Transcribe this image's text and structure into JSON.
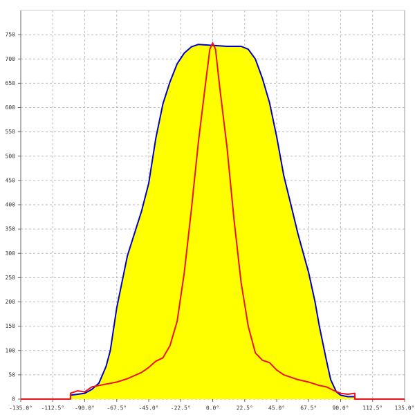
{
  "chart_data": {
    "type": "area-line",
    "xlim": [
      -135,
      135
    ],
    "ylim": [
      0,
      800
    ],
    "xticks": [
      {
        "value": -135,
        "label": "-135.0°"
      },
      {
        "value": -112.5,
        "label": "-112.5°"
      },
      {
        "value": -90,
        "label": "-90.0°"
      },
      {
        "value": -67.5,
        "label": "-67.5°"
      },
      {
        "value": -45,
        "label": "-45.0°"
      },
      {
        "value": -22.5,
        "label": "-22.5°"
      },
      {
        "value": 0,
        "label": "0.0°"
      },
      {
        "value": 22.5,
        "label": "22.5°"
      },
      {
        "value": 45,
        "label": "45.0°"
      },
      {
        "value": 67.5,
        "label": "67.5°"
      },
      {
        "value": 90,
        "label": "90.0°"
      },
      {
        "value": 112.5,
        "label": "112.5°"
      },
      {
        "value": 135,
        "label": "135.0°"
      }
    ],
    "yticks": [
      0,
      50,
      100,
      150,
      200,
      250,
      300,
      350,
      400,
      450,
      500,
      550,
      600,
      650,
      700,
      750
    ],
    "grid": true,
    "series": [
      {
        "color": "#0000cc",
        "fill": "#ffff00",
        "x": [
          -100,
          -100,
          -95,
          -90,
          -85,
          -80,
          -75,
          -72,
          -67.5,
          -60,
          -50,
          -45,
          -40,
          -35,
          -30,
          -25,
          -20,
          -15,
          -10,
          0,
          10,
          20,
          25,
          30,
          35,
          40,
          45,
          50,
          55,
          60,
          67.5,
          72,
          75,
          80,
          83,
          87,
          90,
          95,
          100,
          100
        ],
        "values": [
          0,
          8,
          10,
          12,
          20,
          33,
          67,
          100,
          188,
          295,
          387,
          444,
          537,
          608,
          653,
          690,
          712,
          725,
          730,
          728,
          726,
          726,
          720,
          700,
          660,
          610,
          540,
          460,
          400,
          340,
          260,
          200,
          150,
          80,
          40,
          15,
          8,
          5,
          5,
          0
        ]
      },
      {
        "color": "#ee1111",
        "x": [
          -135,
          -100,
          -100,
          -95,
          -90,
          -85,
          -80,
          -67.5,
          -60,
          -50,
          -45,
          -40,
          -35,
          -30,
          -25,
          -20,
          -15,
          -10,
          -5,
          -2,
          0,
          2,
          5,
          10,
          15,
          20,
          25,
          30,
          35,
          40,
          45,
          50,
          60,
          67.5,
          75,
          80,
          85,
          90,
          95,
          100,
          100,
          135
        ],
        "values": [
          0,
          0,
          12,
          17,
          15,
          25,
          28,
          35,
          42,
          55,
          65,
          78,
          85,
          110,
          160,
          260,
          390,
          530,
          650,
          720,
          733,
          720,
          640,
          520,
          370,
          240,
          150,
          95,
          80,
          75,
          60,
          50,
          40,
          35,
          28,
          25,
          18,
          12,
          10,
          12,
          0,
          0
        ]
      }
    ]
  }
}
